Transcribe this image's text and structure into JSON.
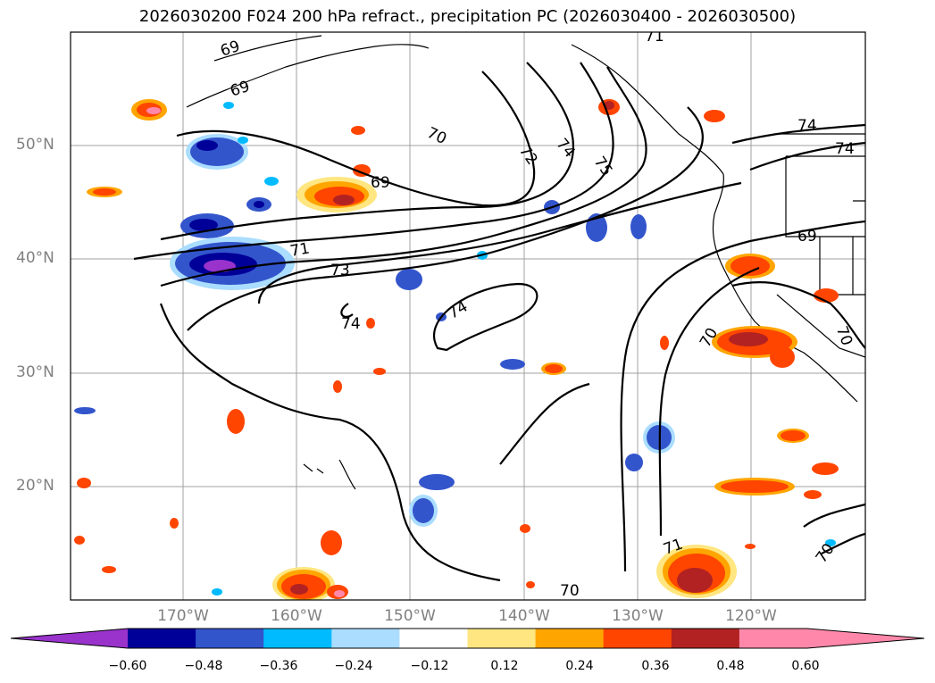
{
  "title": "2026030200 F024 200 hPa refract., precipitation PC (2026030400 - 2026030500)",
  "latitude_labels": [
    "50°N",
    "40°N",
    "30°N",
    "20°N"
  ],
  "longitude_labels": [
    "170°W",
    "160°W",
    "150°W",
    "140°W",
    "130°W",
    "120°W"
  ],
  "contour_labels": [
    "69",
    "69",
    "69",
    "69",
    "70",
    "70",
    "70",
    "70",
    "70",
    "71",
    "71",
    "71",
    "72",
    "73",
    "74",
    "74",
    "74",
    "74",
    "74",
    "75"
  ],
  "colorbar": {
    "ticks": [
      "−0.60",
      "−0.48",
      "−0.36",
      "−0.24",
      "−0.12",
      "0.12",
      "0.24",
      "0.36",
      "0.48",
      "0.60"
    ],
    "colors": [
      "#9933cc",
      "#000099",
      "#3355cc",
      "#00bbff",
      "#aaddff",
      "#ffffff",
      "#ffe680",
      "#ffa500",
      "#ff4500",
      "#b22222",
      "#ff88aa",
      "#ff88aa"
    ]
  }
}
